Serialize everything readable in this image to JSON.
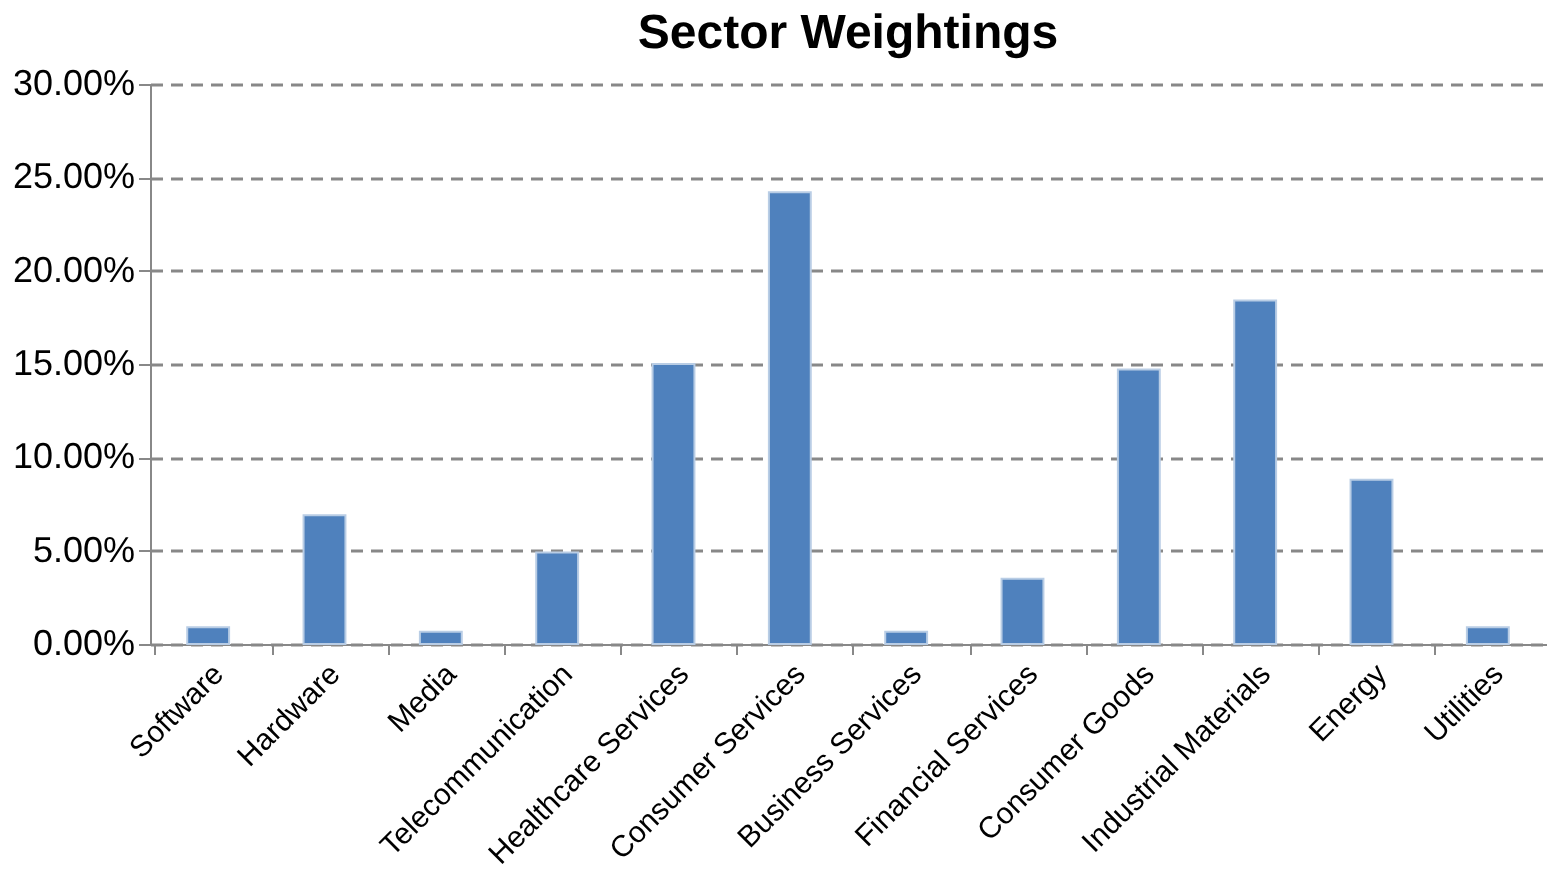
{
  "chart_data": {
    "type": "bar",
    "title": "Sector Weightings",
    "categories": [
      "Software",
      "Hardware",
      "Media",
      "Telecommunication",
      "Healthcare Services",
      "Consumer Services",
      "Business Services",
      "Financial Services",
      "Consumer Goods",
      "Industrial Materials",
      "Energy",
      "Utilities"
    ],
    "values": [
      0.9,
      6.9,
      0.65,
      4.9,
      15.0,
      24.2,
      0.65,
      3.5,
      14.7,
      18.4,
      8.8,
      0.9
    ],
    "color": "#4f81bd",
    "ylim": [
      0,
      30
    ],
    "yticks": [
      {
        "value": 0,
        "label": "0.00%"
      },
      {
        "value": 5,
        "label": "5.00%"
      },
      {
        "value": 10,
        "label": "10.00%"
      },
      {
        "value": 15,
        "label": "15.00%"
      },
      {
        "value": 20,
        "label": "20.00%"
      },
      {
        "value": 25,
        "label": "25.00%"
      },
      {
        "value": 30,
        "label": "30.00%"
      }
    ],
    "grid": "y"
  }
}
